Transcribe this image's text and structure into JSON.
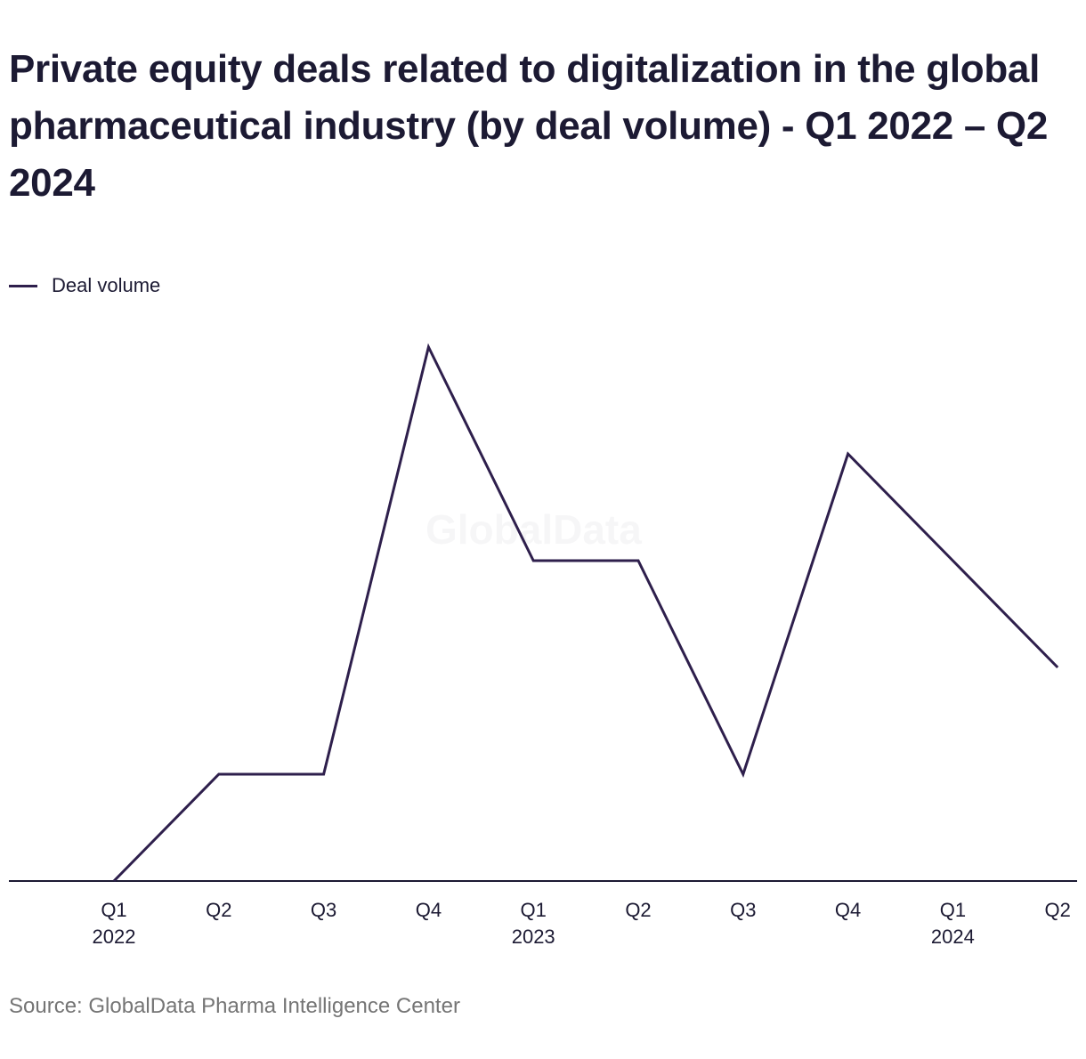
{
  "title": "Private equity deals related to digitalization in the global pharmaceutical industry (by deal volume) - Q1 2022 – Q2 2024",
  "source": "Source: GlobalData Pharma Intelligence Center",
  "watermark": "GlobalData",
  "colors": {
    "line": "#2e1f4c",
    "axis": "#1c1a33",
    "text": "#1c1a33",
    "source": "#757575"
  },
  "chart_data": {
    "type": "line",
    "title": "Private equity deals related to digitalization in the global pharmaceutical industry (by deal volume) - Q1 2022 – Q2 2024",
    "categories": [
      "Q1 2022",
      "Q2 2022",
      "Q3 2022",
      "Q4 2022",
      "Q1 2023",
      "Q2 2023",
      "Q3 2023",
      "Q4 2023",
      "Q1 2024",
      "Q2 2024"
    ],
    "tick_labels": [
      [
        "Q1",
        "2022"
      ],
      [
        "Q2",
        ""
      ],
      [
        "Q3",
        ""
      ],
      [
        "Q4",
        ""
      ],
      [
        "Q1",
        "2023"
      ],
      [
        "Q2",
        ""
      ],
      [
        "Q3",
        ""
      ],
      [
        "Q4",
        ""
      ],
      [
        "Q1",
        "2024"
      ],
      [
        "Q2",
        ""
      ]
    ],
    "series": [
      {
        "name": "Deal volume",
        "values": [
          0,
          1,
          1,
          5,
          3,
          3,
          1,
          4,
          3,
          2
        ]
      }
    ],
    "ylim": [
      0,
      5
    ],
    "grid": false,
    "legend": "top-left",
    "xlabel": "",
    "ylabel": ""
  }
}
